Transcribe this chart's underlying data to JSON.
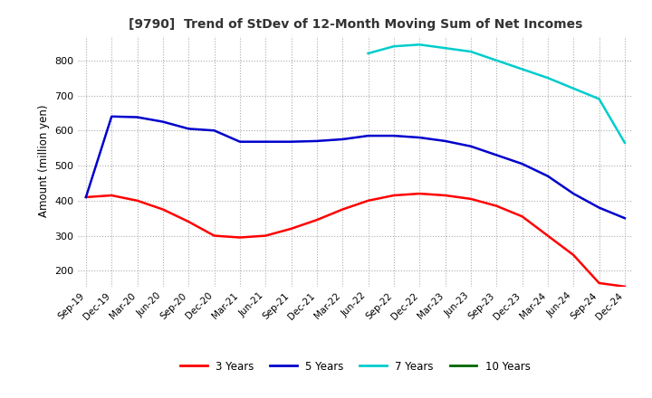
{
  "title": "[9790]  Trend of StDev of 12-Month Moving Sum of Net Incomes",
  "ylabel": "Amount (million yen)",
  "ylim": [
    155,
    870
  ],
  "yticks": [
    200,
    300,
    400,
    500,
    600,
    700,
    800
  ],
  "x_labels": [
    "Sep-19",
    "Dec-19",
    "Mar-20",
    "Jun-20",
    "Sep-20",
    "Dec-20",
    "Mar-21",
    "Jun-21",
    "Sep-21",
    "Dec-21",
    "Mar-22",
    "Jun-22",
    "Sep-22",
    "Dec-22",
    "Mar-23",
    "Jun-23",
    "Sep-23",
    "Dec-23",
    "Mar-24",
    "Jun-24",
    "Sep-24",
    "Dec-24"
  ],
  "series_3y": [
    410,
    415,
    400,
    375,
    340,
    300,
    295,
    300,
    320,
    345,
    375,
    400,
    415,
    420,
    415,
    405,
    385,
    355,
    300,
    245,
    165,
    155
  ],
  "series_5y": [
    410,
    640,
    638,
    625,
    605,
    600,
    568,
    568,
    568,
    570,
    575,
    585,
    585,
    580,
    570,
    555,
    530,
    505,
    470,
    420,
    380,
    350
  ],
  "series_7y": [
    null,
    null,
    null,
    null,
    null,
    null,
    null,
    null,
    null,
    null,
    null,
    820,
    840,
    845,
    835,
    825,
    800,
    775,
    750,
    720,
    690,
    565
  ],
  "series_10y": [
    null,
    null,
    null,
    null,
    null,
    null,
    null,
    null,
    null,
    null,
    null,
    null,
    null,
    null,
    null,
    null,
    null,
    null,
    null,
    null,
    null,
    null
  ],
  "color_3y": "#ff0000",
  "color_5y": "#0000cc",
  "color_7y": "#00cccc",
  "color_10y": "#006600",
  "legend_labels": [
    "3 Years",
    "5 Years",
    "7 Years",
    "10 Years"
  ],
  "bg_color": "#ffffff",
  "grid_color": "#aaaaaa"
}
